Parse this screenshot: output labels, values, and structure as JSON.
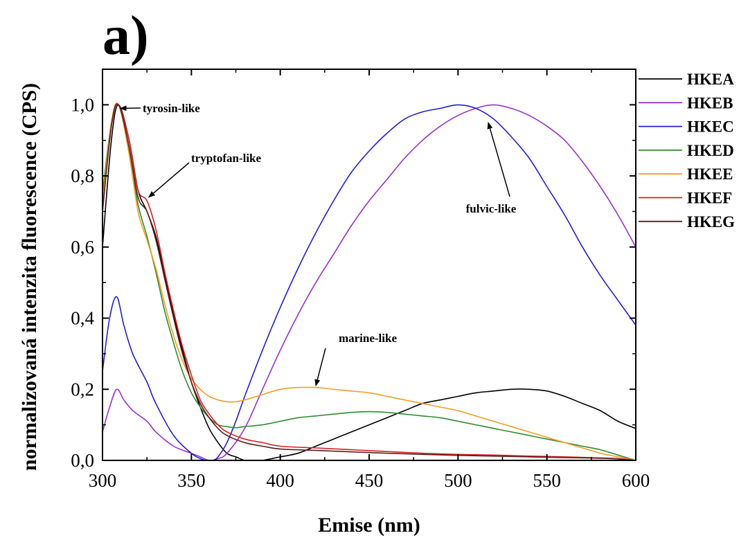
{
  "panel_label": "a)",
  "chart_data": {
    "type": "line",
    "title": "",
    "xlabel": "Emise (nm)",
    "ylabel": "normalizovaná intenzita fluorescence (CPS)",
    "xlim": [
      300,
      600
    ],
    "ylim": [
      0.0,
      1.1
    ],
    "xticks": [
      300,
      350,
      400,
      450,
      500,
      550,
      600
    ],
    "xtick_labels": [
      "300",
      "350",
      "400",
      "450",
      "500",
      "550",
      "600"
    ],
    "yticks": [
      0.0,
      0.2,
      0.4,
      0.6,
      0.8,
      1.0
    ],
    "ytick_labels": [
      "0,0",
      "0,2",
      "0,4",
      "0,6",
      "0,8",
      "1,0"
    ],
    "legend_position": "right outside",
    "series": [
      {
        "name": "HKEA",
        "color": "#000000",
        "x": [
          300,
          305,
          309,
          315,
          320,
          325,
          330,
          335,
          340,
          345,
          350,
          355,
          360,
          365,
          370,
          375,
          380,
          385,
          390,
          400,
          410,
          420,
          430,
          440,
          450,
          460,
          470,
          480,
          490,
          500,
          510,
          520,
          530,
          540,
          550,
          560,
          570,
          580,
          590,
          600
        ],
        "y": [
          0.6,
          0.9,
          1.0,
          0.9,
          0.76,
          0.7,
          0.63,
          0.52,
          0.41,
          0.31,
          0.22,
          0.15,
          0.09,
          0.05,
          0.02,
          0.01,
          0.0,
          0.0,
          0.0,
          0.01,
          0.02,
          0.04,
          0.06,
          0.08,
          0.1,
          0.12,
          0.14,
          0.16,
          0.17,
          0.18,
          0.19,
          0.195,
          0.2,
          0.2,
          0.195,
          0.18,
          0.16,
          0.14,
          0.11,
          0.09
        ]
      },
      {
        "name": "HKEB",
        "color": "#9932CC",
        "x": [
          300,
          304,
          308,
          312,
          317,
          325,
          330,
          340,
          350,
          355,
          360,
          365,
          370,
          380,
          390,
          400,
          410,
          420,
          430,
          440,
          450,
          460,
          470,
          480,
          490,
          500,
          510,
          520,
          530,
          540,
          550,
          560,
          570,
          580,
          590,
          600
        ],
        "y": [
          0.08,
          0.15,
          0.2,
          0.17,
          0.14,
          0.11,
          0.08,
          0.04,
          0.02,
          0.01,
          0.0,
          0.005,
          0.02,
          0.09,
          0.2,
          0.31,
          0.41,
          0.5,
          0.58,
          0.66,
          0.73,
          0.79,
          0.85,
          0.9,
          0.94,
          0.97,
          0.99,
          1.0,
          0.99,
          0.97,
          0.94,
          0.9,
          0.84,
          0.77,
          0.69,
          0.6
        ]
      },
      {
        "name": "HKEC",
        "color": "#1F1FD0",
        "x": [
          300,
          304,
          308,
          312,
          317,
          325,
          330,
          340,
          350,
          355,
          358,
          362,
          365,
          370,
          375,
          380,
          390,
          400,
          410,
          420,
          430,
          440,
          450,
          460,
          470,
          480,
          490,
          500,
          510,
          520,
          530,
          540,
          550,
          560,
          570,
          580,
          590,
          600
        ],
        "y": [
          0.25,
          0.4,
          0.46,
          0.38,
          0.3,
          0.22,
          0.16,
          0.07,
          0.02,
          0.005,
          0.0,
          0.0,
          0.01,
          0.05,
          0.11,
          0.18,
          0.31,
          0.43,
          0.54,
          0.64,
          0.73,
          0.81,
          0.87,
          0.92,
          0.96,
          0.98,
          0.99,
          1.0,
          0.99,
          0.96,
          0.91,
          0.85,
          0.77,
          0.69,
          0.6,
          0.52,
          0.45,
          0.38
        ]
      },
      {
        "name": "HKED",
        "color": "#2E8B2E",
        "x": [
          300,
          305,
          309,
          315,
          320,
          325,
          330,
          335,
          340,
          345,
          350,
          355,
          360,
          365,
          370,
          375,
          380,
          390,
          400,
          410,
          420,
          430,
          440,
          450,
          460,
          470,
          480,
          490,
          500,
          510,
          520,
          530,
          540,
          550,
          560,
          570,
          580,
          590,
          600
        ],
        "y": [
          0.75,
          0.95,
          1.0,
          0.87,
          0.72,
          0.63,
          0.53,
          0.42,
          0.33,
          0.25,
          0.19,
          0.15,
          0.12,
          0.1,
          0.095,
          0.092,
          0.095,
          0.1,
          0.11,
          0.12,
          0.125,
          0.13,
          0.135,
          0.137,
          0.135,
          0.13,
          0.125,
          0.12,
          0.11,
          0.1,
          0.09,
          0.08,
          0.07,
          0.06,
          0.05,
          0.04,
          0.03,
          0.015,
          0.0
        ]
      },
      {
        "name": "HKEE",
        "color": "#F39C26",
        "x": [
          300,
          305,
          309,
          315,
          320,
          325,
          330,
          335,
          340,
          345,
          350,
          355,
          360,
          365,
          370,
          375,
          380,
          390,
          400,
          410,
          420,
          430,
          440,
          450,
          460,
          470,
          480,
          490,
          500,
          510,
          520,
          530,
          540,
          550,
          560,
          570,
          580,
          590,
          600
        ],
        "y": [
          0.72,
          0.95,
          1.0,
          0.86,
          0.7,
          0.62,
          0.54,
          0.44,
          0.35,
          0.28,
          0.23,
          0.2,
          0.18,
          0.17,
          0.165,
          0.165,
          0.17,
          0.185,
          0.2,
          0.205,
          0.205,
          0.2,
          0.195,
          0.19,
          0.18,
          0.17,
          0.16,
          0.15,
          0.14,
          0.125,
          0.11,
          0.095,
          0.08,
          0.065,
          0.05,
          0.035,
          0.02,
          0.01,
          0.0
        ]
      },
      {
        "name": "HKEF",
        "color": "#D42020",
        "x": [
          300,
          305,
          309,
          315,
          320,
          325,
          330,
          335,
          340,
          345,
          350,
          355,
          360,
          365,
          370,
          380,
          390,
          400,
          420,
          440,
          460,
          480,
          500,
          520,
          540,
          560,
          580,
          590,
          600
        ],
        "y": [
          0.7,
          0.94,
          1.0,
          0.9,
          0.76,
          0.73,
          0.65,
          0.53,
          0.42,
          0.32,
          0.24,
          0.17,
          0.13,
          0.1,
          0.08,
          0.06,
          0.05,
          0.04,
          0.035,
          0.03,
          0.025,
          0.02,
          0.017,
          0.015,
          0.012,
          0.01,
          0.007,
          0.005,
          0.0
        ]
      },
      {
        "name": "HKEG",
        "color": "#5C1F1F",
        "x": [
          300,
          305,
          309,
          315,
          320,
          325,
          330,
          335,
          340,
          345,
          350,
          355,
          360,
          365,
          370,
          380,
          390,
          400,
          420,
          440,
          460,
          480,
          500,
          520,
          540,
          560,
          580,
          590,
          600
        ],
        "y": [
          0.7,
          0.94,
          1.0,
          0.88,
          0.74,
          0.7,
          0.62,
          0.51,
          0.4,
          0.3,
          0.22,
          0.16,
          0.12,
          0.09,
          0.07,
          0.05,
          0.04,
          0.032,
          0.028,
          0.024,
          0.02,
          0.017,
          0.014,
          0.012,
          0.01,
          0.008,
          0.006,
          0.004,
          0.0
        ]
      }
    ],
    "annotations": [
      {
        "text": "tyrosin-like",
        "target": [
          310,
          0.99
        ]
      },
      {
        "text": "tryptofan-like",
        "target": [
          326,
          0.74
        ]
      },
      {
        "text": "fulvic-like",
        "target": [
          517,
          0.95
        ]
      },
      {
        "text": "marine-like",
        "target": [
          420,
          0.21
        ]
      }
    ]
  }
}
